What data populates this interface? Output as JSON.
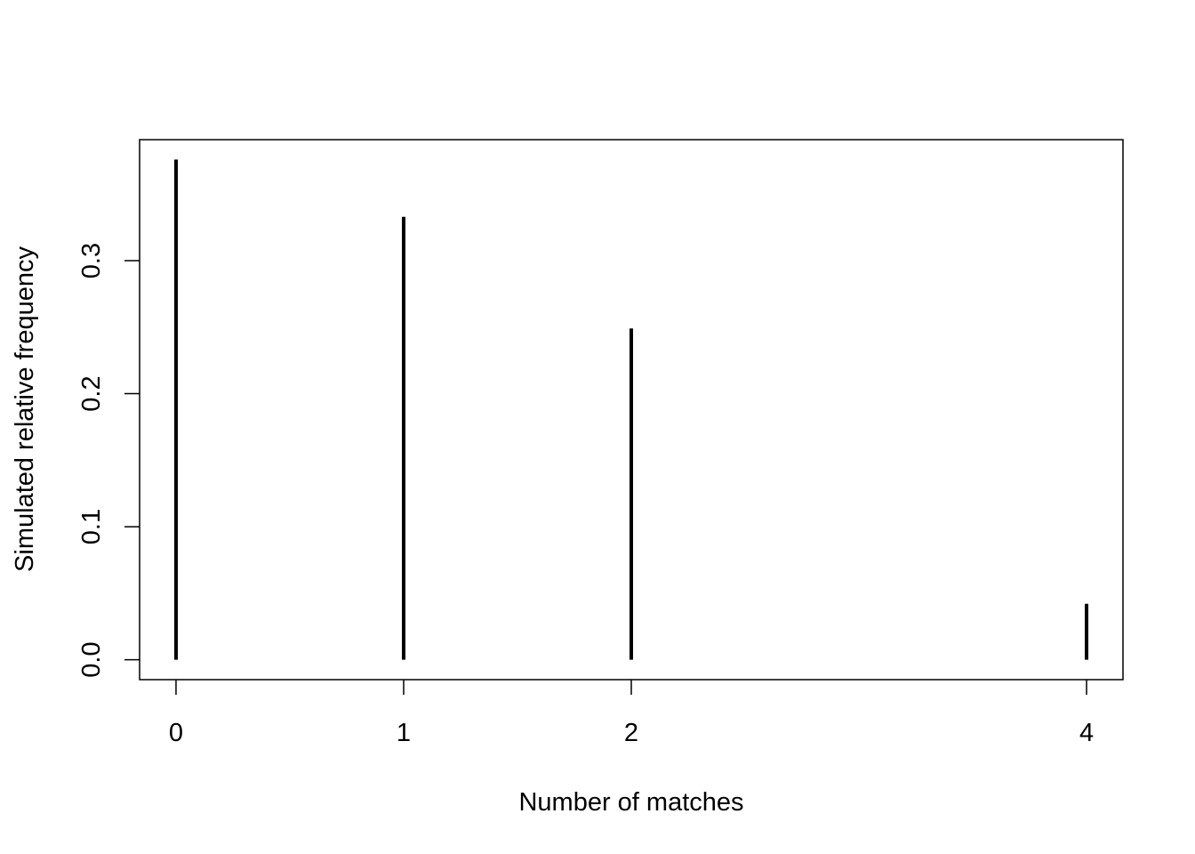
{
  "chart_data": {
    "type": "bar",
    "style": "vertical spikes (histogram-like lines)",
    "x": [
      0,
      1,
      2,
      4
    ],
    "values": [
      0.376,
      0.333,
      0.249,
      0.042
    ],
    "xlabel": "Number of matches",
    "ylabel": "Simulated relative frequency",
    "xticks": [
      "0",
      "1",
      "2",
      "4"
    ],
    "yticks": [
      "0.0",
      "0.1",
      "0.2",
      "0.3"
    ],
    "xlim": [
      -0.16,
      4.16
    ],
    "ylim": [
      -0.015,
      0.391
    ],
    "grid": false,
    "color": "#000000"
  }
}
